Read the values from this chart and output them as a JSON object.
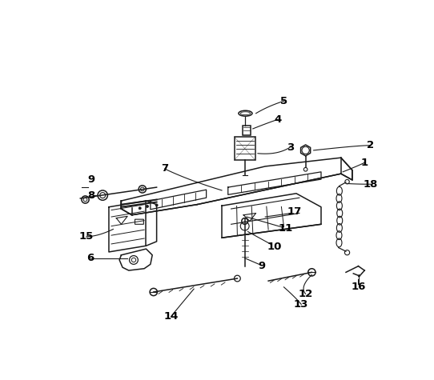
{
  "background_color": "#ffffff",
  "line_color": "#1a1a1a",
  "text_color": "#000000",
  "lw": 1.1
}
